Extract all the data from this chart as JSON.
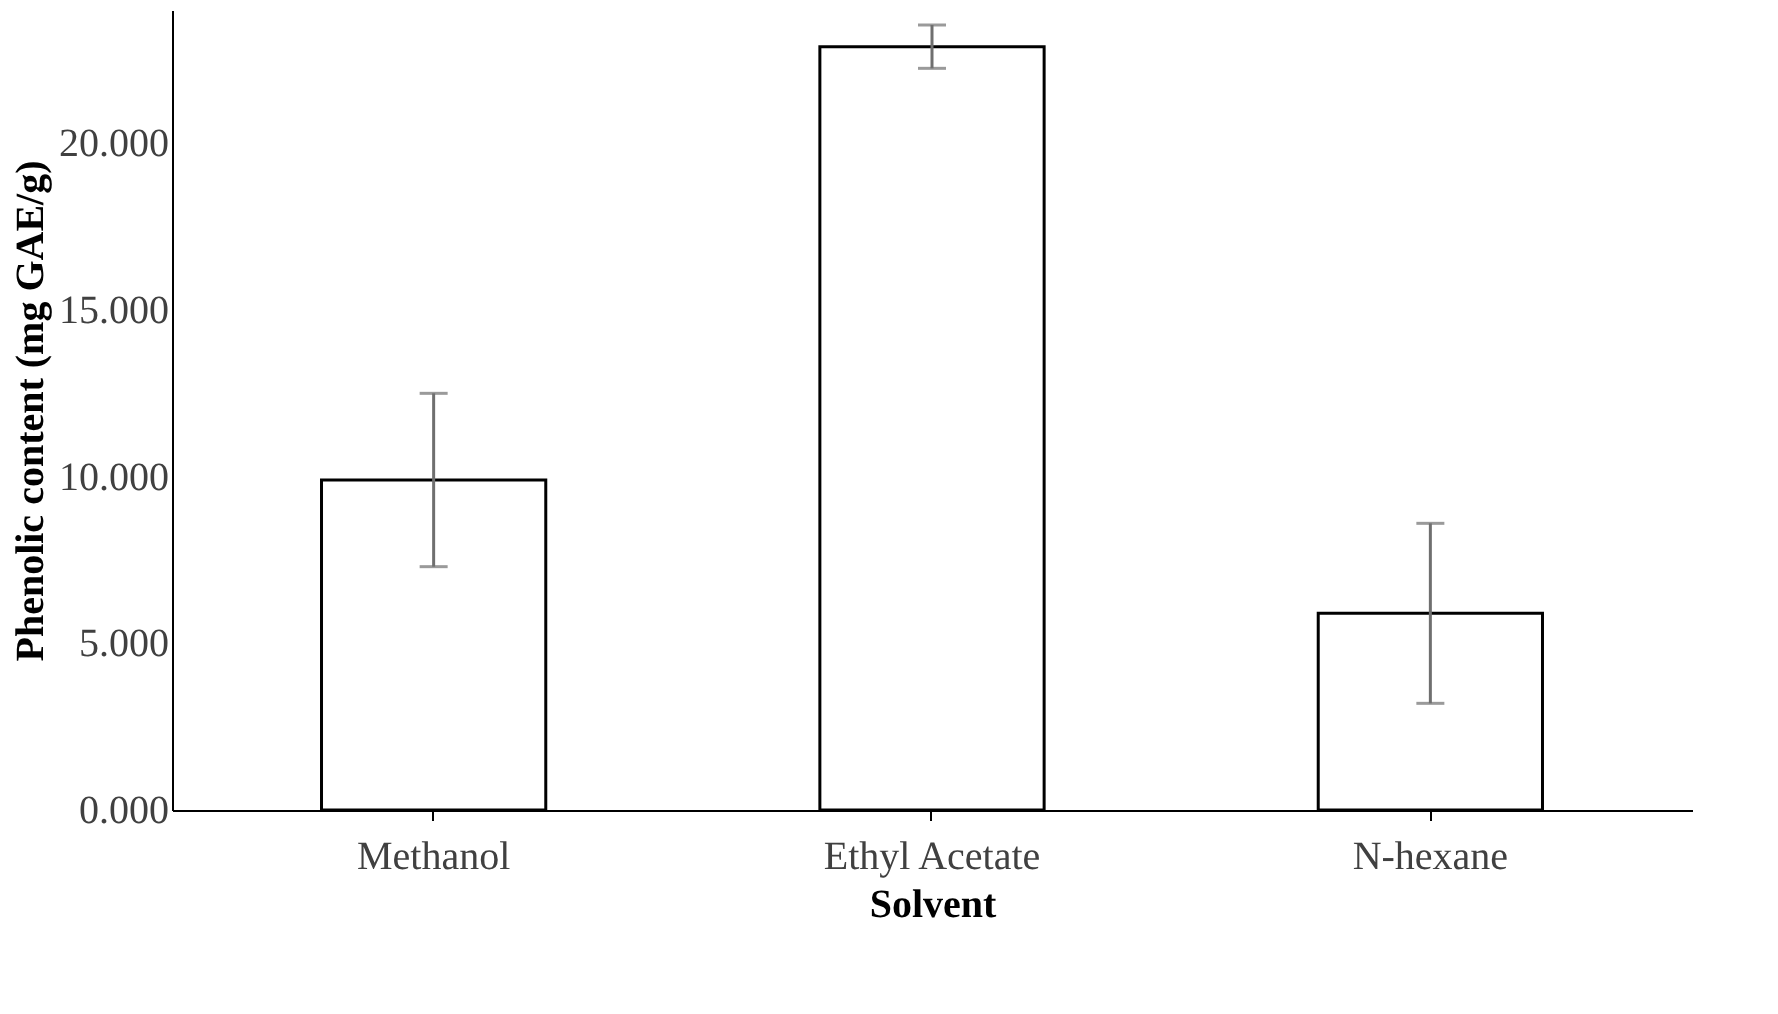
{
  "chart_data": {
    "type": "bar",
    "xlabel": "Solvent",
    "ylabel": "Phenolic content (mg GAE/g)",
    "categories": [
      "Methanol",
      "Ethyl Acetate",
      "N-hexane"
    ],
    "series": [
      {
        "color": "#ffffff",
        "values": [
          9.9,
          22.9,
          5.9
        ],
        "errors": [
          2.6,
          0.65,
          2.7
        ]
      }
    ],
    "ylim": [
      0,
      24
    ],
    "yticks": [
      {
        "value": 0,
        "label": "0.000"
      },
      {
        "value": 5,
        "label": "5.000"
      },
      {
        "value": 10,
        "label": "10.000"
      },
      {
        "value": 15,
        "label": "15.000"
      },
      {
        "value": 20,
        "label": "20.000"
      }
    ],
    "grid": false
  }
}
